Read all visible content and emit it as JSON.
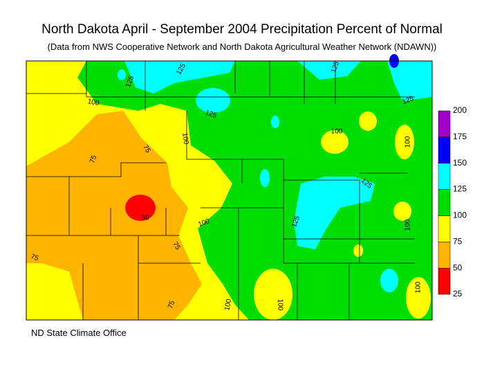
{
  "title": "North Dakota April - September 2004 Precipitation Percent of Normal",
  "subtitle": "(Data from NWS Cooperative Network and North Dakota Agricultural Weather Network (NDAWN))",
  "footer": "ND State Climate Office",
  "legend": {
    "ticks": [
      25,
      50,
      75,
      100,
      125,
      150,
      175,
      200
    ],
    "colors": [
      "#ff0000",
      "#ffb400",
      "#ffff00",
      "#00dd00",
      "#00ffff",
      "#0000ff",
      "#a000c8"
    ]
  },
  "contour_labels": [
    125,
    125,
    125,
    100,
    75,
    100,
    125,
    100,
    125,
    100,
    75,
    125,
    50,
    100,
    125,
    100,
    75,
    75,
    75,
    100,
    100,
    100
  ]
}
